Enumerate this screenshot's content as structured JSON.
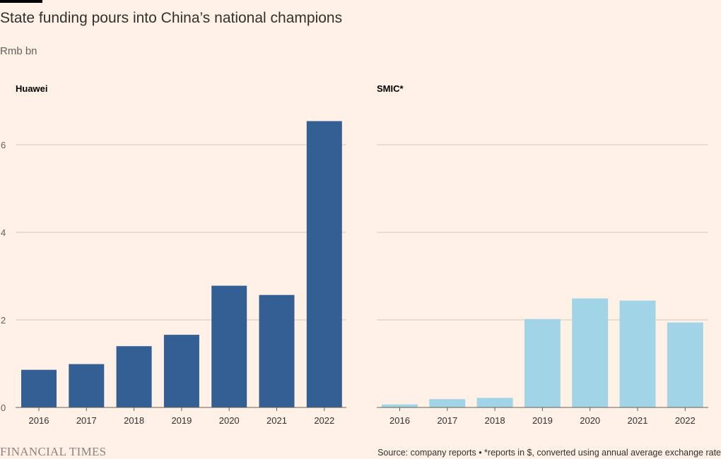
{
  "header": {
    "title": "State funding pours into China’s national champions",
    "unit": "Rmb bn"
  },
  "footer": {
    "logo": "FINANCIAL TIMES",
    "source": "Source: company reports • *reports in $, converted using annual average exchange rate"
  },
  "colors": {
    "background": "#fff1e5",
    "huawei_bar": "#335f95",
    "smic_bar": "#a1d4e6",
    "gridline": "#d6c8bd",
    "baseline": "#66605c"
  },
  "chart_data": [
    {
      "type": "bar",
      "title": "Huawei",
      "categories": [
        "2016",
        "2017",
        "2018",
        "2019",
        "2020",
        "2021",
        "2022"
      ],
      "values": [
        0.86,
        0.99,
        1.4,
        1.66,
        2.78,
        2.57,
        6.54
      ],
      "ylim": [
        0,
        6.7
      ],
      "yticks": [
        0,
        2,
        4,
        6
      ],
      "grid": true
    },
    {
      "type": "bar",
      "title": "SMIC*",
      "categories": [
        "2016",
        "2017",
        "2018",
        "2019",
        "2020",
        "2021",
        "2022"
      ],
      "values": [
        0.07,
        0.19,
        0.22,
        2.02,
        2.49,
        2.44,
        1.94
      ],
      "ylim": [
        0,
        6.7
      ],
      "yticks": [
        0,
        2,
        4,
        6
      ],
      "grid": true
    }
  ]
}
